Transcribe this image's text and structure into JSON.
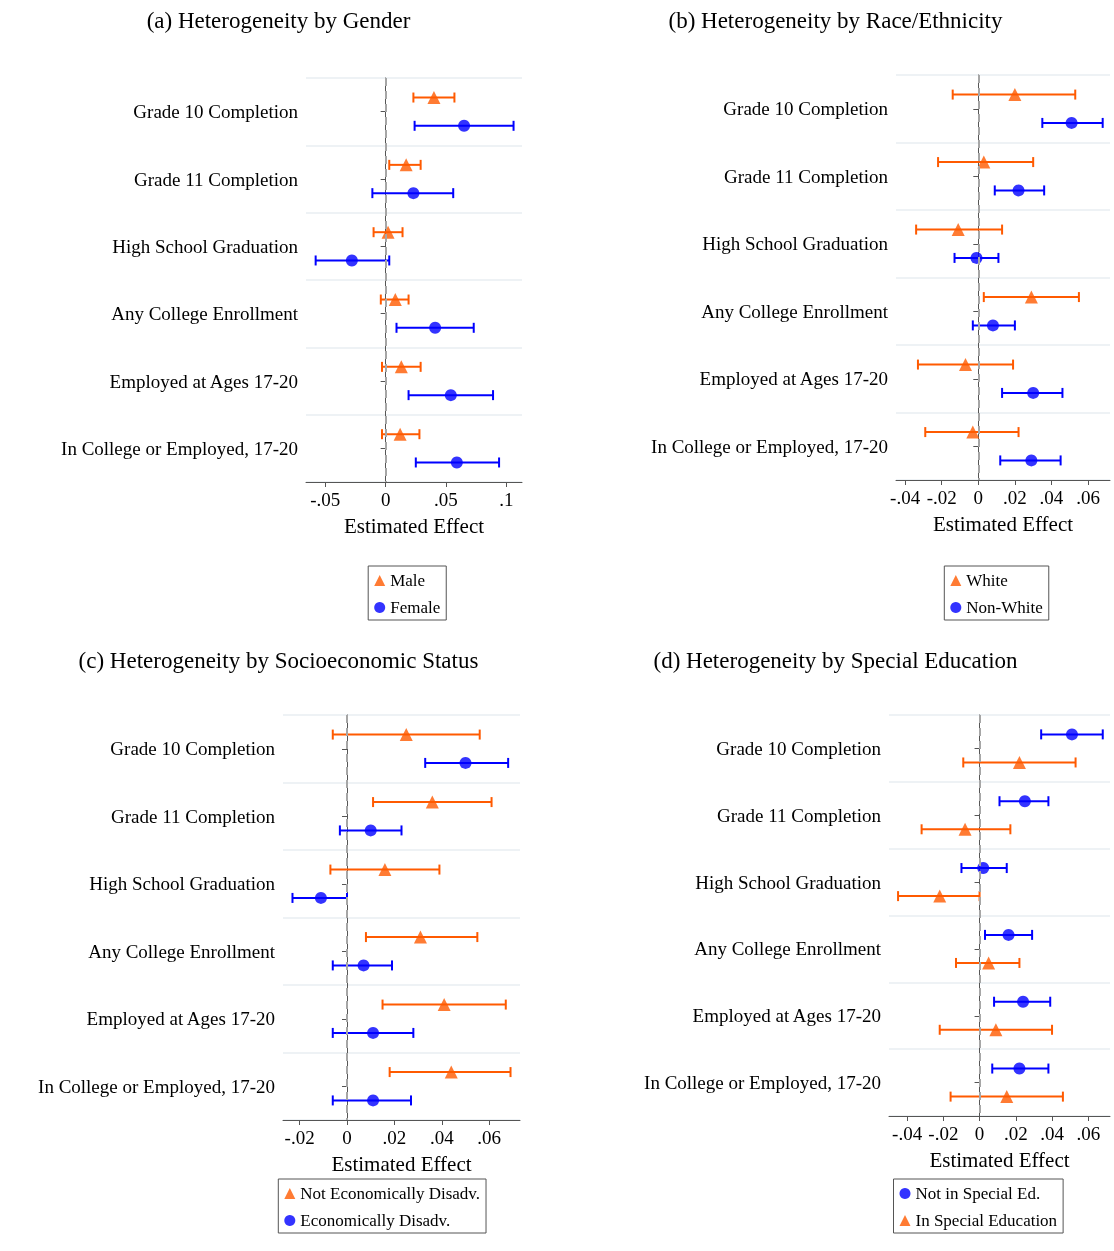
{
  "chart_data": [
    {
      "type": "scatter",
      "orientation": "horizontal",
      "title": "(a) Heterogeneity by Gender",
      "xlabel": "Estimated Effect",
      "categories": [
        "Grade 10 Completion",
        "Grade 11 Completion",
        "High School Graduation",
        "Any College Enrollment",
        "Employed at Ages 17-20",
        "In College or Employed, 17-20"
      ],
      "series": [
        {
          "name": "Male",
          "color": "#ff5a00",
          "marker": "triangle",
          "values": [
            0.04,
            0.017,
            0.002,
            0.008,
            0.013,
            0.012
          ],
          "errors": [
            [
              0.023,
              0.057
            ],
            [
              0.003,
              0.029
            ],
            [
              -0.01,
              0.014
            ],
            [
              -0.004,
              0.019
            ],
            [
              -0.003,
              0.029
            ],
            [
              -0.003,
              0.028
            ]
          ]
        },
        {
          "name": "Female",
          "color": "#0000ff",
          "marker": "circle",
          "values": [
            0.065,
            0.023,
            -0.028,
            0.041,
            0.054,
            0.059
          ],
          "errors": [
            [
              0.024,
              0.106
            ],
            [
              -0.011,
              0.056
            ],
            [
              -0.058,
              0.003
            ],
            [
              0.009,
              0.073
            ],
            [
              0.019,
              0.089
            ],
            [
              0.025,
              0.094
            ]
          ]
        }
      ],
      "xlim": [
        -0.066,
        0.113
      ],
      "xticks": [
        {
          "value": -0.05,
          "label": "-.05"
        },
        {
          "value": 0,
          "label": "0"
        },
        {
          "value": 0.05,
          "label": ".05"
        },
        {
          "value": 0.1,
          "label": ".1"
        }
      ],
      "ref_lines": [
        {
          "axis": "x",
          "value": 0,
          "color": "#a6a6a6",
          "line_style": "dashed"
        }
      ],
      "grid": "y",
      "legend": "bottom"
    },
    {
      "type": "scatter",
      "orientation": "horizontal",
      "title": "(b) Heterogeneity by Race/Ethnicity",
      "xlabel": "Estimated Effect",
      "categories": [
        "Grade 10 Completion",
        "Grade 11 Completion",
        "High School Graduation",
        "Any College Enrollment",
        "Employed at Ages 17-20",
        "In College or Employed, 17-20"
      ],
      "series": [
        {
          "name": "White",
          "color": "#ff5a00",
          "marker": "triangle",
          "values": [
            0.02,
            0.003,
            -0.011,
            0.029,
            -0.007,
            -0.003
          ],
          "errors": [
            [
              -0.014,
              0.053
            ],
            [
              -0.022,
              0.03
            ],
            [
              -0.034,
              0.013
            ],
            [
              0.003,
              0.055
            ],
            [
              -0.033,
              0.019
            ],
            [
              -0.029,
              0.022
            ]
          ]
        },
        {
          "name": "Non-White",
          "color": "#0000ff",
          "marker": "circle",
          "values": [
            0.051,
            0.022,
            -0.001,
            0.008,
            0.03,
            0.029
          ],
          "errors": [
            [
              0.035,
              0.068
            ],
            [
              0.009,
              0.036
            ],
            [
              -0.013,
              0.011
            ],
            [
              -0.003,
              0.02
            ],
            [
              0.013,
              0.046
            ],
            [
              0.012,
              0.045
            ]
          ]
        }
      ],
      "xlim": [
        -0.045,
        0.072
      ],
      "xticks": [
        {
          "value": -0.04,
          "label": "-.04"
        },
        {
          "value": -0.02,
          "label": "-.02"
        },
        {
          "value": 0,
          "label": "0"
        },
        {
          "value": 0.02,
          "label": ".02"
        },
        {
          "value": 0.04,
          "label": ".04"
        },
        {
          "value": 0.06,
          "label": ".06"
        }
      ],
      "ref_lines": [
        {
          "axis": "x",
          "value": 0,
          "color": "#a6a6a6",
          "line_style": "dashed"
        }
      ],
      "grid": "y",
      "legend": "bottom"
    },
    {
      "type": "scatter",
      "orientation": "horizontal",
      "title": "(c) Heterogeneity by Socioeconomic Status",
      "xlabel": "Estimated Effect",
      "categories": [
        "Grade 10 Completion",
        "Grade 11 Completion",
        "High School Graduation",
        "Any College Enrollment",
        "Employed at Ages 17-20",
        "In College or Employed, 17-20"
      ],
      "series": [
        {
          "name": "Not Economically Disadv.",
          "color": "#ff5a00",
          "marker": "triangle",
          "values": [
            0.025,
            0.036,
            0.016,
            0.031,
            0.041,
            0.044
          ],
          "errors": [
            [
              -0.006,
              0.056
            ],
            [
              0.011,
              0.061
            ],
            [
              -0.007,
              0.039
            ],
            [
              0.008,
              0.055
            ],
            [
              0.015,
              0.067
            ],
            [
              0.018,
              0.069
            ]
          ]
        },
        {
          "name": "Economically Disadv.",
          "color": "#0000ff",
          "marker": "circle",
          "values": [
            0.05,
            0.01,
            -0.011,
            0.007,
            0.011,
            0.011
          ],
          "errors": [
            [
              0.033,
              0.068
            ],
            [
              -0.003,
              0.023
            ],
            [
              -0.023,
              0.0
            ],
            [
              -0.006,
              0.019
            ],
            [
              -0.006,
              0.028
            ],
            [
              -0.006,
              0.027
            ]
          ]
        }
      ],
      "xlim": [
        -0.027,
        0.073
      ],
      "xticks": [
        {
          "value": -0.02,
          "label": "-.02"
        },
        {
          "value": 0,
          "label": "0"
        },
        {
          "value": 0.02,
          "label": ".02"
        },
        {
          "value": 0.04,
          "label": ".04"
        },
        {
          "value": 0.06,
          "label": ".06"
        }
      ],
      "ref_lines": [
        {
          "axis": "x",
          "value": 0,
          "color": "#a6a6a6",
          "line_style": "dashed"
        }
      ],
      "grid": "y",
      "legend": "bottom"
    },
    {
      "type": "scatter",
      "orientation": "horizontal",
      "title": "(d) Heterogeneity by Special Education",
      "xlabel": "Estimated Effect",
      "categories": [
        "Grade 10 Completion",
        "Grade 11 Completion",
        "High School Graduation",
        "Any College Enrollment",
        "Employed at Ages 17-20",
        "In College or Employed, 17-20"
      ],
      "series": [
        {
          "name": "Not in Special Ed.",
          "color": "#0000ff",
          "marker": "circle",
          "values": [
            0.051,
            0.025,
            0.002,
            0.016,
            0.024,
            0.022
          ],
          "errors": [
            [
              0.034,
              0.068
            ],
            [
              0.011,
              0.038
            ],
            [
              -0.01,
              0.015
            ],
            [
              0.003,
              0.029
            ],
            [
              0.008,
              0.039
            ],
            [
              0.007,
              0.038
            ]
          ]
        },
        {
          "name": "In Special Education",
          "color": "#ff5a00",
          "marker": "triangle",
          "values": [
            0.022,
            -0.008,
            -0.022,
            0.005,
            0.009,
            0.015
          ],
          "errors": [
            [
              -0.009,
              0.053
            ],
            [
              -0.032,
              0.017
            ],
            [
              -0.045,
              0.0
            ],
            [
              -0.013,
              0.022
            ],
            [
              -0.022,
              0.04
            ],
            [
              -0.016,
              0.046
            ]
          ]
        }
      ],
      "xlim": [
        -0.05,
        0.072
      ],
      "xticks": [
        {
          "value": -0.04,
          "label": "-.04"
        },
        {
          "value": -0.02,
          "label": "-.02"
        },
        {
          "value": 0,
          "label": "0"
        },
        {
          "value": 0.02,
          "label": ".02"
        },
        {
          "value": 0.04,
          "label": ".04"
        },
        {
          "value": 0.06,
          "label": ".06"
        }
      ],
      "ref_lines": [
        {
          "axis": "x",
          "value": 0,
          "color": "#a6a6a6",
          "line_style": "dashed"
        }
      ],
      "grid": "y",
      "legend": "bottom"
    }
  ]
}
